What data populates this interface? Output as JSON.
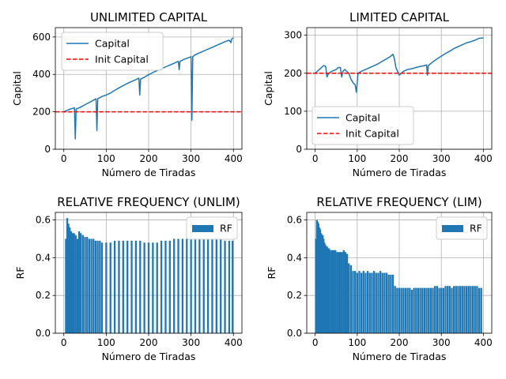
{
  "colors": {
    "series": "#1f77b4",
    "init": "#ff0000"
  },
  "chart_data": [
    {
      "type": "line",
      "title": "UNLIMITED CAPITAL",
      "xlabel": "Número de Tiradas",
      "ylabel": "Capital",
      "xlim": [
        -20,
        420
      ],
      "ylim": [
        0,
        650
      ],
      "xticks": [
        0,
        100,
        200,
        300,
        400
      ],
      "yticks": [
        0,
        200,
        400,
        600
      ],
      "grid": true,
      "legend": "upper-left",
      "hline": {
        "name": "Init Capital",
        "y": 200
      },
      "series": [
        {
          "name": "Capital",
          "points": [
            [
              0,
              200
            ],
            [
              10,
              210
            ],
            [
              20,
              218
            ],
            [
              25,
              222
            ],
            [
              27,
              55
            ],
            [
              29,
              215
            ],
            [
              40,
              225
            ],
            [
              50,
              238
            ],
            [
              60,
              250
            ],
            [
              70,
              262
            ],
            [
              76,
              270
            ],
            [
              78,
              100
            ],
            [
              80,
              270
            ],
            [
              90,
              282
            ],
            [
              100,
              290
            ],
            [
              110,
              300
            ],
            [
              120,
              315
            ],
            [
              130,
              328
            ],
            [
              140,
              340
            ],
            [
              150,
              352
            ],
            [
              160,
              362
            ],
            [
              170,
              372
            ],
            [
              177,
              380
            ],
            [
              179,
              290
            ],
            [
              181,
              375
            ],
            [
              190,
              385
            ],
            [
              200,
              398
            ],
            [
              210,
              410
            ],
            [
              220,
              420
            ],
            [
              230,
              430
            ],
            [
              240,
              440
            ],
            [
              250,
              450
            ],
            [
              260,
              460
            ],
            [
              270,
              470
            ],
            [
              272,
              425
            ],
            [
              274,
              470
            ],
            [
              285,
              482
            ],
            [
              295,
              490
            ],
            [
              300,
              495
            ],
            [
              302,
              155
            ],
            [
              304,
              495
            ],
            [
              310,
              505
            ],
            [
              320,
              515
            ],
            [
              330,
              525
            ],
            [
              340,
              535
            ],
            [
              350,
              545
            ],
            [
              360,
              555
            ],
            [
              370,
              565
            ],
            [
              380,
              575
            ],
            [
              390,
              583
            ],
            [
              394,
              570
            ],
            [
              396,
              590
            ],
            [
              400,
              595
            ]
          ]
        }
      ]
    },
    {
      "type": "line",
      "title": "LIMITED CAPITAL",
      "xlabel": "Número de Tiradas",
      "ylabel": "Capital",
      "xlim": [
        -20,
        420
      ],
      "ylim": [
        0,
        320
      ],
      "xticks": [
        0,
        100,
        200,
        300,
        400
      ],
      "yticks": [
        0,
        100,
        200,
        300
      ],
      "grid": true,
      "legend": "lower-left",
      "hline": {
        "name": "Init Capital",
        "y": 200
      },
      "series": [
        {
          "name": "Capital",
          "points": [
            [
              0,
              200
            ],
            [
              10,
              210
            ],
            [
              20,
              220
            ],
            [
              25,
              218
            ],
            [
              28,
              190
            ],
            [
              32,
              200
            ],
            [
              40,
              205
            ],
            [
              50,
              210
            ],
            [
              55,
              215
            ],
            [
              60,
              215
            ],
            [
              63,
              190
            ],
            [
              66,
              205
            ],
            [
              70,
              210
            ],
            [
              80,
              200
            ],
            [
              85,
              185
            ],
            [
              90,
              175
            ],
            [
              95,
              170
            ],
            [
              98,
              150
            ],
            [
              100,
              175
            ],
            [
              102,
              200
            ],
            [
              110,
              205
            ],
            [
              120,
              210
            ],
            [
              130,
              215
            ],
            [
              140,
              220
            ],
            [
              150,
              225
            ],
            [
              160,
              232
            ],
            [
              170,
              238
            ],
            [
              180,
              245
            ],
            [
              185,
              250
            ],
            [
              188,
              240
            ],
            [
              192,
              215
            ],
            [
              196,
              205
            ],
            [
              200,
              195
            ],
            [
              205,
              200
            ],
            [
              210,
              205
            ],
            [
              220,
              210
            ],
            [
              230,
              212
            ],
            [
              240,
              215
            ],
            [
              250,
              218
            ],
            [
              260,
              220
            ],
            [
              265,
              222
            ],
            [
              267,
              195
            ],
            [
              269,
              220
            ],
            [
              280,
              230
            ],
            [
              290,
              238
            ],
            [
              300,
              245
            ],
            [
              310,
              252
            ],
            [
              320,
              258
            ],
            [
              330,
              265
            ],
            [
              340,
              270
            ],
            [
              350,
              275
            ],
            [
              360,
              280
            ],
            [
              370,
              283
            ],
            [
              380,
              287
            ],
            [
              390,
              292
            ],
            [
              400,
              293
            ]
          ]
        }
      ]
    },
    {
      "type": "bar",
      "title": "RELATIVE FREQUENCY (UNLIM)",
      "xlabel": "Número de Tiradas",
      "ylabel": "RF",
      "xlim": [
        -20,
        420
      ],
      "ylim": [
        0,
        0.64
      ],
      "xticks": [
        0,
        100,
        200,
        300,
        400
      ],
      "yticks": [
        0.0,
        0.2,
        0.4,
        0.6
      ],
      "grid": true,
      "legend": "upper-right",
      "series": [
        {
          "name": "RF",
          "x": [
            5,
            8,
            11,
            14,
            17,
            20,
            24,
            28,
            32,
            36,
            40,
            45,
            50,
            55,
            60,
            65,
            70,
            75,
            80,
            85,
            90,
            100,
            110,
            120,
            130,
            140,
            150,
            160,
            170,
            180,
            190,
            200,
            210,
            220,
            230,
            240,
            250,
            260,
            270,
            280,
            290,
            300,
            310,
            320,
            330,
            340,
            350,
            360,
            370,
            380,
            390,
            398
          ],
          "values": [
            0.5,
            0.61,
            0.58,
            0.56,
            0.54,
            0.53,
            0.53,
            0.52,
            0.5,
            0.54,
            0.53,
            0.52,
            0.51,
            0.51,
            0.5,
            0.5,
            0.5,
            0.49,
            0.49,
            0.49,
            0.48,
            0.48,
            0.48,
            0.49,
            0.49,
            0.49,
            0.49,
            0.49,
            0.49,
            0.49,
            0.48,
            0.48,
            0.48,
            0.48,
            0.49,
            0.49,
            0.49,
            0.5,
            0.5,
            0.5,
            0.5,
            0.5,
            0.5,
            0.5,
            0.5,
            0.5,
            0.5,
            0.5,
            0.5,
            0.49,
            0.49,
            0.49
          ]
        }
      ]
    },
    {
      "type": "bar",
      "title": "RELATIVE FREQUENCY (LIM)",
      "xlabel": "Número de Tiradas",
      "ylabel": "RF",
      "xlim": [
        -20,
        420
      ],
      "ylim": [
        0,
        0.64
      ],
      "xticks": [
        0,
        100,
        200,
        300,
        400
      ],
      "yticks": [
        0.0,
        0.2,
        0.4,
        0.6
      ],
      "grid": true,
      "legend": "upper-right",
      "series": [
        {
          "name": "RF",
          "x": [
            2,
            4,
            6,
            8,
            10,
            12,
            14,
            16,
            18,
            20,
            22,
            24,
            26,
            28,
            30,
            33,
            36,
            40,
            44,
            48,
            52,
            56,
            60,
            64,
            68,
            72,
            76,
            80,
            85,
            90,
            95,
            100,
            105,
            110,
            115,
            120,
            125,
            130,
            135,
            140,
            145,
            150,
            155,
            160,
            165,
            170,
            175,
            180,
            185,
            190,
            195,
            200,
            205,
            210,
            215,
            220,
            225,
            230,
            235,
            240,
            245,
            250,
            255,
            260,
            265,
            270,
            275,
            280,
            285,
            290,
            295,
            300,
            305,
            310,
            315,
            320,
            325,
            330,
            335,
            340,
            345,
            350,
            355,
            360,
            365,
            370,
            375,
            380,
            385,
            390,
            395
          ],
          "values": [
            0.5,
            0.6,
            0.59,
            0.58,
            0.56,
            0.55,
            0.53,
            0.52,
            0.52,
            0.5,
            0.48,
            0.47,
            0.46,
            0.46,
            0.45,
            0.45,
            0.44,
            0.44,
            0.44,
            0.44,
            0.43,
            0.43,
            0.43,
            0.43,
            0.44,
            0.43,
            0.42,
            0.37,
            0.36,
            0.33,
            0.33,
            0.32,
            0.33,
            0.32,
            0.33,
            0.32,
            0.33,
            0.32,
            0.32,
            0.33,
            0.32,
            0.32,
            0.33,
            0.32,
            0.32,
            0.32,
            0.31,
            0.31,
            0.31,
            0.25,
            0.24,
            0.24,
            0.24,
            0.24,
            0.24,
            0.24,
            0.24,
            0.23,
            0.24,
            0.24,
            0.24,
            0.24,
            0.24,
            0.24,
            0.24,
            0.24,
            0.24,
            0.24,
            0.25,
            0.25,
            0.24,
            0.24,
            0.24,
            0.25,
            0.25,
            0.25,
            0.24,
            0.25,
            0.25,
            0.25,
            0.25,
            0.25,
            0.25,
            0.25,
            0.25,
            0.25,
            0.25,
            0.25,
            0.25,
            0.24,
            0.24
          ]
        }
      ]
    }
  ]
}
